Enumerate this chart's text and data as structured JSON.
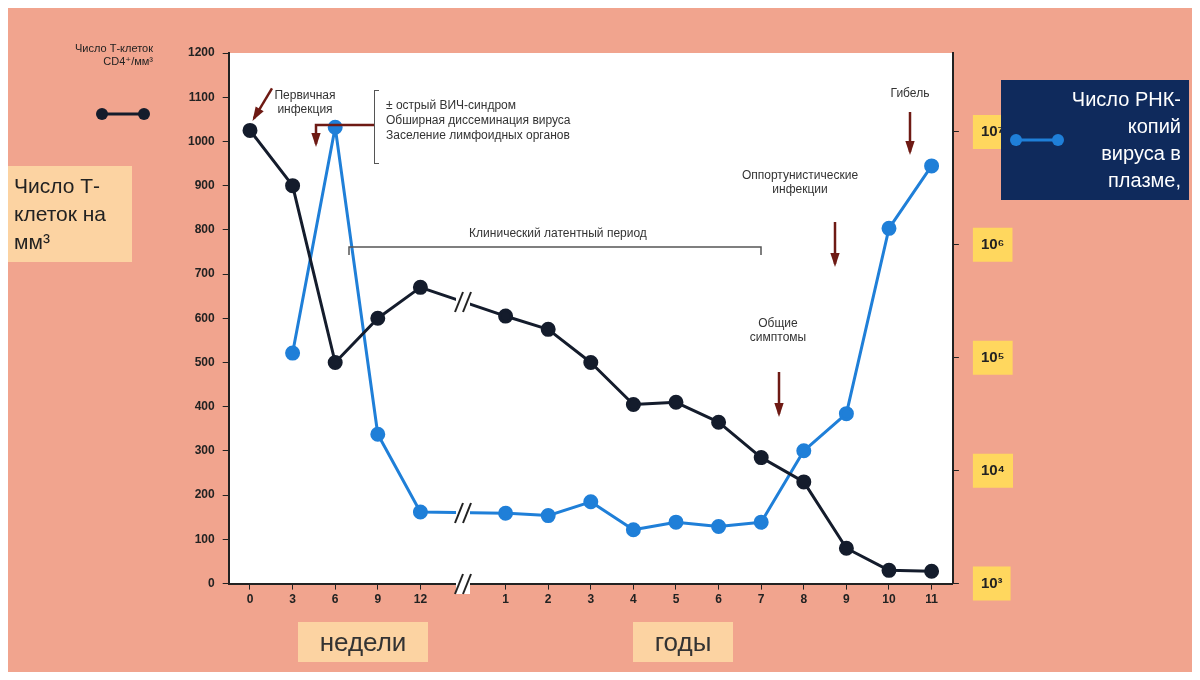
{
  "chart_data": {
    "type": "line",
    "ylabel": "Число Т-клеток на мм³",
    "categories": [
      "0",
      "3",
      "6",
      "9",
      "12",
      null,
      "1",
      "2",
      "3",
      "4",
      "5",
      "6",
      "7",
      "8",
      "9",
      "10",
      "11"
    ],
    "series": [
      {
        "name": "Число Т-клеток CD4⁺/мм³",
        "color": "#141c2c",
        "values": [
          1025,
          900,
          500,
          600,
          670,
          null,
          605,
          575,
          500,
          405,
          410,
          365,
          285,
          230,
          80,
          30,
          28
        ]
      },
      {
        "name": "Число РНК-копий вируса в плазме,",
        "color": "#1f7fd8",
        "axis": "y2",
        "values": [
          null,
          110000,
          11000000,
          21000,
          4300,
          null,
          4200,
          4000,
          5300,
          3000,
          3500,
          3200,
          3500,
          15000,
          32000,
          1400000,
          5000000
        ]
      }
    ],
    "ylim": [
      0,
      1200
    ],
    "yticks": [
      0,
      100,
      200,
      300,
      400,
      500,
      600,
      700,
      800,
      900,
      1000,
      1100,
      1200
    ],
    "y2lim": [
      1000,
      50000000
    ],
    "y2ticks": [
      {
        "value": 1000,
        "label": "10³"
      },
      {
        "value": 10000,
        "label": "10⁴"
      },
      {
        "value": 100000,
        "label": "10⁵"
      },
      {
        "value": 1000000,
        "label": "10⁶"
      },
      {
        "value": 10000000,
        "label": "10⁷"
      }
    ],
    "log": "y2",
    "grid": false,
    "marker": "circle",
    "line_style": "solid",
    "legend": "top",
    "annotations": [
      {
        "text": "Первичная инфекция",
        "x": "0",
        "y": 1025
      },
      "± острый ВИЧ-синдром",
      "Обширная диссеминация вируса",
      "Заселение лимфоидных органов",
      "Клинический латентный период",
      "Оппортунистические инфекции",
      "Общие симптомы",
      "Гибель",
      "недели",
      "годы"
    ]
  }
}
